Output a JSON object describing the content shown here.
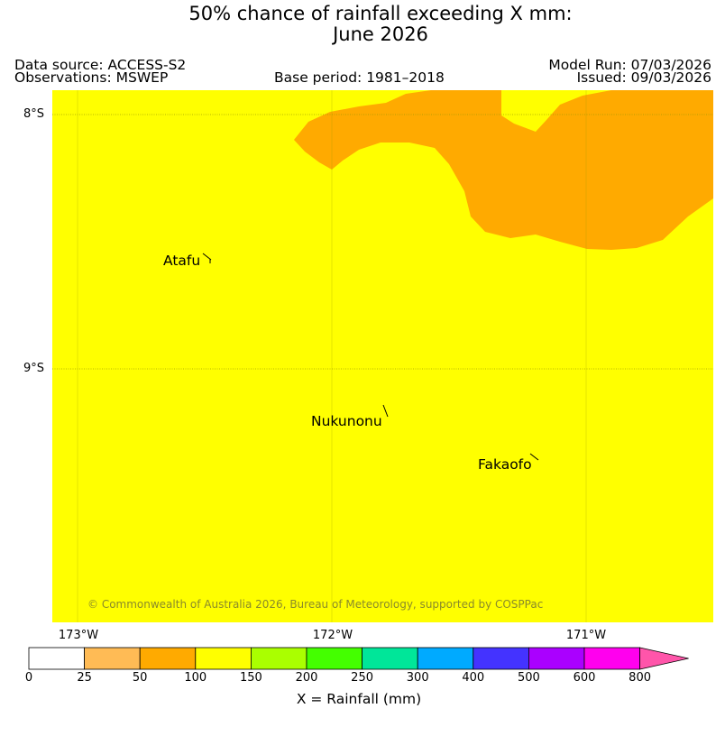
{
  "title": {
    "line1": "50% chance of rainfall exceeding X mm:",
    "line2": "June 2026"
  },
  "meta": {
    "data_source": "Data source: ACCESS-S2",
    "observations": "Observations: MSWEP",
    "base_period": "Base period: 1981–2018",
    "model_run": "Model Run: 07/03/2026",
    "issued": "Issued: 09/03/2026"
  },
  "map": {
    "lat_labels": [
      "8°S",
      "9°S"
    ],
    "lon_labels": [
      "173°W",
      "172°W",
      "171°W"
    ],
    "places": [
      {
        "name": "Atafu"
      },
      {
        "name": "Nukunonu"
      },
      {
        "name": "Fakaofo"
      }
    ],
    "copyright": "© Commonwealth of Australia 2026, Bureau of Meteorology, supported by COSPPac",
    "colors": {
      "background_fill": "#ffff00",
      "region_fill": "#ffaa00",
      "gridline": "#999900"
    }
  },
  "colorbar": {
    "label": "X = Rainfall (mm)",
    "ticks": [
      "0",
      "25",
      "50",
      "100",
      "150",
      "200",
      "250",
      "300",
      "400",
      "500",
      "600",
      "800"
    ],
    "colors": [
      "#ffffff",
      "#ffbb55",
      "#ffaa00",
      "#ffff00",
      "#aaff00",
      "#44ff00",
      "#00e699",
      "#00aaff",
      "#4433ff",
      "#aa00ff",
      "#ff00ee",
      "#ff55aa"
    ],
    "extend": "max"
  }
}
